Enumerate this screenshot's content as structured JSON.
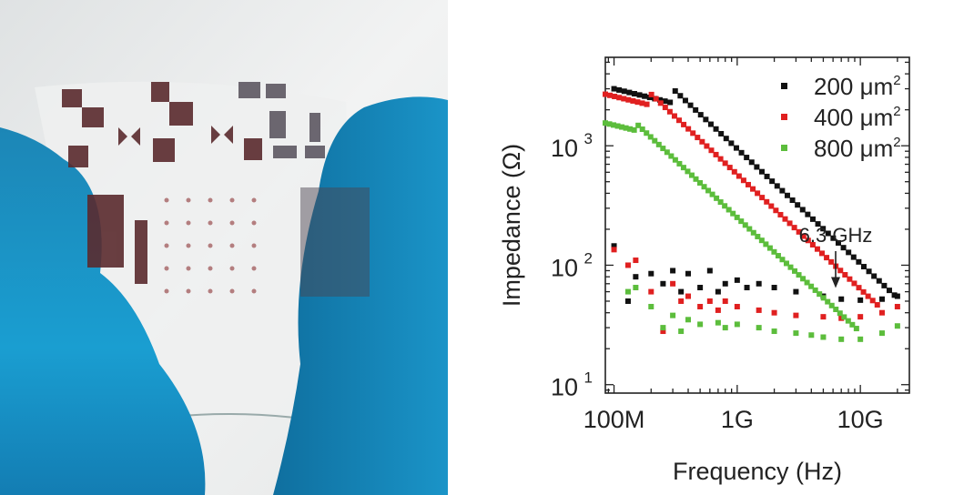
{
  "chart_data": {
    "type": "scatter",
    "xlabel": "Frequency (Hz)",
    "ylabel": "Impedance (Ω)",
    "x_scale": "log",
    "y_scale": "log",
    "xlim": [
      85000000,
      25000000000
    ],
    "ylim": [
      8.5,
      5500
    ],
    "x_ticks": [
      {
        "value": 100000000,
        "label": "100M"
      },
      {
        "value": 1000000000,
        "label": "1G"
      },
      {
        "value": 10000000000,
        "label": "10G"
      }
    ],
    "y_ticks": [
      {
        "value": 10,
        "base": "10",
        "exp": "1"
      },
      {
        "value": 100,
        "base": "10",
        "exp": "2"
      },
      {
        "value": 1000,
        "base": "10",
        "exp": "3"
      }
    ],
    "legend_position": "top-right",
    "series": [
      {
        "name": "200",
        "unit": "μm",
        "unit_exp": "2",
        "color": "#111111",
        "upper": {
          "f0": 100000000,
          "z0": 3000,
          "fc": 300000000,
          "fend": 20000000000,
          "fstep": 1.1
        },
        "lower": [
          [
            100000000,
            145
          ],
          [
            130000000,
            50
          ],
          [
            150000000,
            80
          ],
          [
            200000000,
            85
          ],
          [
            250000000,
            70
          ],
          [
            300000000,
            90
          ],
          [
            350000000,
            60
          ],
          [
            400000000,
            85
          ],
          [
            500000000,
            65
          ],
          [
            600000000,
            90
          ],
          [
            700000000,
            60
          ],
          [
            800000000,
            70
          ],
          [
            1000000000,
            75
          ],
          [
            1200000000,
            65
          ],
          [
            1500000000,
            70
          ],
          [
            2000000000,
            65
          ],
          [
            3000000000,
            60
          ],
          [
            5000000000,
            55
          ],
          [
            7000000000,
            52
          ],
          [
            10000000000,
            51
          ],
          [
            15000000000,
            52
          ],
          [
            20000000000,
            55
          ]
        ]
      },
      {
        "name": "400",
        "unit": "μm",
        "unit_exp": "2",
        "color": "#e02020",
        "upper": {
          "f0": 85000000,
          "z0": 2700,
          "fc": 200000000,
          "fend": 14000000000,
          "fstep": 1.09
        },
        "lower": [
          [
            100000000,
            135
          ],
          [
            130000000,
            100
          ],
          [
            150000000,
            110
          ],
          [
            200000000,
            60
          ],
          [
            250000000,
            28
          ],
          [
            300000000,
            70
          ],
          [
            350000000,
            50
          ],
          [
            400000000,
            55
          ],
          [
            500000000,
            45
          ],
          [
            600000000,
            50
          ],
          [
            700000000,
            42
          ],
          [
            800000000,
            50
          ],
          [
            1000000000,
            45
          ],
          [
            1500000000,
            42
          ],
          [
            2000000000,
            40
          ],
          [
            3000000000,
            38
          ],
          [
            5000000000,
            37
          ],
          [
            7000000000,
            36
          ],
          [
            10000000000,
            37
          ],
          [
            15000000000,
            40
          ],
          [
            20000000000,
            45
          ]
        ]
      },
      {
        "name": "800",
        "unit": "μm",
        "unit_exp": "2",
        "color": "#5cbd3c",
        "upper": {
          "f0": 85000000,
          "z0": 1550,
          "fc": 150000000,
          "fend": 10000000000,
          "fstep": 1.08
        },
        "lower": [
          [
            130000000,
            60
          ],
          [
            150000000,
            65
          ],
          [
            200000000,
            45
          ],
          [
            250000000,
            30
          ],
          [
            300000000,
            38
          ],
          [
            350000000,
            28
          ],
          [
            400000000,
            35
          ],
          [
            500000000,
            32
          ],
          [
            700000000,
            33
          ],
          [
            800000000,
            30
          ],
          [
            1000000000,
            32
          ],
          [
            1500000000,
            30
          ],
          [
            2000000000,
            28
          ],
          [
            3000000000,
            27
          ],
          [
            4000000000,
            26
          ],
          [
            5000000000,
            25
          ],
          [
            7000000000,
            24
          ],
          [
            10000000000,
            24
          ],
          [
            15000000000,
            27
          ],
          [
            20000000000,
            31
          ]
        ]
      }
    ],
    "annotation": {
      "text": "6.3 GHz",
      "x": 6300000000,
      "y": 56
    }
  }
}
